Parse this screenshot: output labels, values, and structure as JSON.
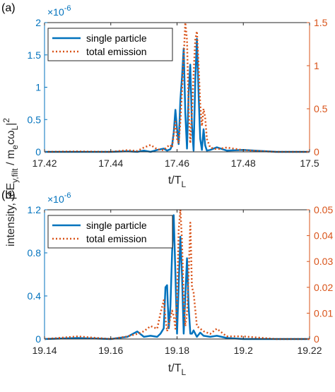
{
  "chart_data": [
    {
      "type": "line",
      "panel_label": "(a)",
      "xlabel_base": "t/T",
      "xlabel_sub": "L",
      "xlim": [
        17.42,
        17.5
      ],
      "x_ticks": [
        "17.42",
        "17.44",
        "17.46",
        "17.48",
        "17.5"
      ],
      "y_left": {
        "lim": [
          0,
          2
        ],
        "ticks": [
          "0",
          "0.5",
          "1",
          "1.5",
          "2"
        ],
        "multiplier": "×10",
        "exponent": "-6",
        "color": "#0072BD"
      },
      "y_right": {
        "lim": [
          0,
          1.5
        ],
        "ticks": [
          "0",
          "0.5",
          "1",
          "1.5"
        ],
        "color": "#D95319"
      },
      "legend_position": "top-left",
      "series": [
        {
          "name": "single particle",
          "axis": "left",
          "style": "solid",
          "color": "#0072BD",
          "x": [
            17.42,
            17.43,
            17.44,
            17.445,
            17.448,
            17.45,
            17.452,
            17.454,
            17.456,
            17.457,
            17.458,
            17.4585,
            17.459,
            17.4595,
            17.46,
            17.4605,
            17.461,
            17.4615,
            17.462,
            17.4625,
            17.463,
            17.4635,
            17.464,
            17.4645,
            17.465,
            17.4655,
            17.466,
            17.4665,
            17.467,
            17.4675,
            17.468,
            17.4685,
            17.469,
            17.47,
            17.472,
            17.475,
            17.48,
            17.49,
            17.5
          ],
          "y": [
            0,
            0,
            0,
            0.01,
            0,
            0.02,
            0,
            0.03,
            0.05,
            0.02,
            0.04,
            0.1,
            0.3,
            0.65,
            0.35,
            0.12,
            0.8,
            1.15,
            1.6,
            0.6,
            0.05,
            0.9,
            1.35,
            0.4,
            0.02,
            1.1,
            1.75,
            0.9,
            0.2,
            0.03,
            0.35,
            0.1,
            0.02,
            0.03,
            0.07,
            0.02,
            0.03,
            0,
            0
          ]
        },
        {
          "name": "total emission",
          "axis": "right",
          "style": "dotted",
          "color": "#D95319",
          "x": [
            17.42,
            17.43,
            17.44,
            17.445,
            17.448,
            17.45,
            17.452,
            17.454,
            17.456,
            17.457,
            17.458,
            17.4585,
            17.459,
            17.4595,
            17.46,
            17.4605,
            17.461,
            17.4615,
            17.462,
            17.4625,
            17.463,
            17.4635,
            17.464,
            17.4645,
            17.465,
            17.4655,
            17.466,
            17.4665,
            17.467,
            17.4675,
            17.468,
            17.4685,
            17.469,
            17.47,
            17.472,
            17.475,
            17.48,
            17.49,
            17.5
          ],
          "y": [
            0,
            0.005,
            0,
            0.02,
            0.01,
            0.05,
            0.08,
            0.03,
            0.02,
            0.06,
            0.08,
            0.05,
            0.2,
            0.35,
            0.15,
            0.1,
            0.35,
            0.7,
            1.1,
            1.5,
            1.3,
            0.5,
            0.1,
            0.45,
            0.9,
            1.3,
            1.4,
            1.0,
            0.55,
            0.3,
            0.5,
            0.4,
            0.15,
            0.05,
            0.03,
            0.05,
            0.02,
            0,
            0
          ]
        }
      ]
    },
    {
      "type": "line",
      "panel_label": "(b)",
      "xlabel_base": "t/T",
      "xlabel_sub": "L",
      "xlim": [
        19.14,
        19.22
      ],
      "x_ticks": [
        "19.14",
        "19.16",
        "19.18",
        "19.2",
        "19.22"
      ],
      "y_left": {
        "lim": [
          0,
          1.2
        ],
        "ticks": [
          "0",
          "0.4",
          "0.8",
          "1.2"
        ],
        "multiplier": "×10",
        "exponent": "-6",
        "color": "#0072BD"
      },
      "y_right": {
        "lim": [
          0,
          0.05
        ],
        "ticks": [
          "0",
          "0.01",
          "0.02",
          "0.03",
          "0.04",
          "0.05"
        ],
        "color": "#D95319"
      },
      "legend_position": "top-left",
      "series": [
        {
          "name": "single particle",
          "axis": "left",
          "style": "solid",
          "color": "#0072BD",
          "x": [
            19.14,
            19.15,
            19.16,
            19.165,
            19.168,
            19.17,
            19.172,
            19.174,
            19.175,
            19.176,
            19.1765,
            19.177,
            19.1775,
            19.178,
            19.1785,
            19.179,
            19.1795,
            19.18,
            19.1805,
            19.181,
            19.1815,
            19.182,
            19.1825,
            19.183,
            19.1835,
            19.184,
            19.1845,
            19.185,
            19.186,
            19.187,
            19.188,
            19.19,
            19.192,
            19.195,
            19.2,
            19.21,
            19.22
          ],
          "y": [
            0,
            0.01,
            0,
            0.02,
            0.07,
            0.02,
            0.03,
            0.02,
            0.05,
            0.1,
            0.48,
            0.5,
            0.1,
            0.3,
            0.8,
            1.15,
            0.6,
            0.05,
            0.5,
            0.95,
            0.6,
            0.05,
            0.4,
            0.75,
            0.3,
            0.05,
            0.05,
            0.08,
            0.02,
            0.06,
            0.03,
            0.02,
            0.03,
            0.01,
            0,
            0,
            0
          ]
        },
        {
          "name": "total emission",
          "axis": "right",
          "style": "dotted",
          "color": "#D95319",
          "x": [
            19.14,
            19.15,
            19.16,
            19.165,
            19.168,
            19.17,
            19.172,
            19.174,
            19.175,
            19.176,
            19.1765,
            19.177,
            19.1775,
            19.178,
            19.1785,
            19.179,
            19.1795,
            19.18,
            19.1805,
            19.181,
            19.1815,
            19.182,
            19.1825,
            19.183,
            19.1835,
            19.184,
            19.1845,
            19.185,
            19.186,
            19.187,
            19.188,
            19.19,
            19.192,
            19.195,
            19.2,
            19.21,
            19.22
          ],
          "y": [
            0,
            0.001,
            0,
            0.001,
            0.002,
            0.003,
            0.005,
            0.004,
            0.01,
            0.015,
            0.008,
            0.003,
            0.006,
            0.008,
            0.011,
            0.009,
            0.004,
            0.015,
            0.042,
            0.05,
            0.038,
            0.015,
            0.005,
            0.01,
            0.025,
            0.045,
            0.02,
            0.018,
            0.005,
            0.004,
            0.003,
            0.002,
            0.004,
            0.001,
            0.001,
            0,
            0
          ]
        }
      ]
    }
  ],
  "shared_ylabel": {
    "prefix": "intensity, |eE",
    "sub1": "y,filt",
    "mid": " / m",
    "sub2": "e",
    "mid2": "cω",
    "sub3": "L",
    "suffix": "|",
    "sup": "2"
  }
}
